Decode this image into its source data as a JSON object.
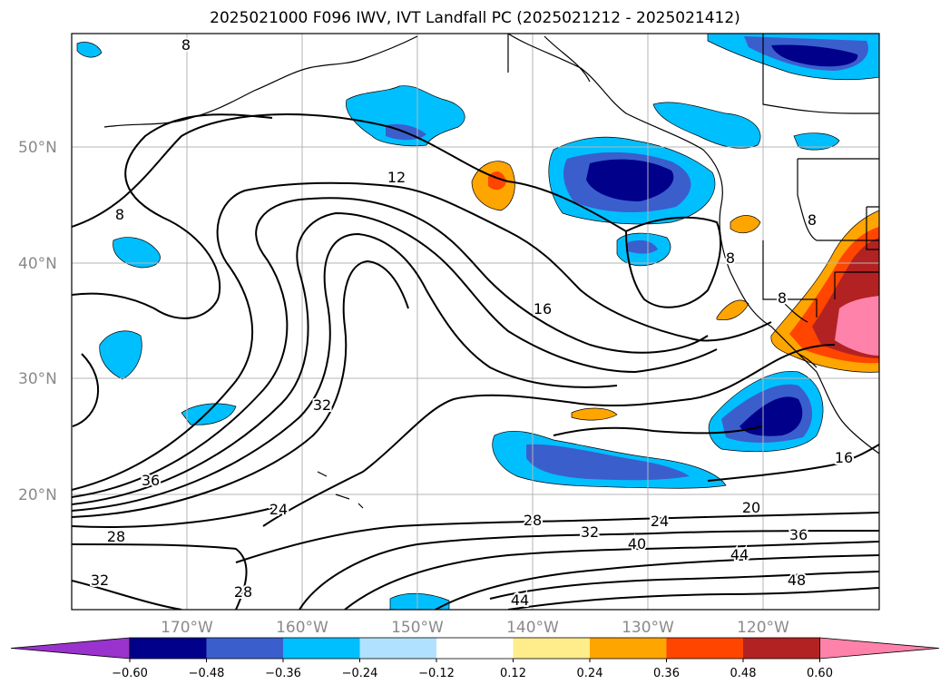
{
  "title": "2025021000 F096 IWV, IVT Landfall PC (2025021212 - 2025021412)",
  "map": {
    "lat_labels": [
      "50°N",
      "40°N",
      "30°N",
      "20°N"
    ],
    "lon_labels": [
      "170°W",
      "160°W",
      "150°W",
      "140°W",
      "130°W",
      "120°W"
    ],
    "extent": {
      "lon_min": -180,
      "lon_max": -110,
      "lat_min": 10,
      "lat_max": 60
    },
    "contour_labels": [
      "8",
      "8",
      "12",
      "16",
      "8",
      "32",
      "36",
      "24",
      "28",
      "32",
      "28",
      "28",
      "32",
      "24",
      "40",
      "20",
      "36",
      "44",
      "48",
      "44",
      "16",
      "8",
      "8"
    ],
    "contour_color": "#000000",
    "coastline_color": "#000000"
  },
  "colorbar": {
    "ticks": [
      "−0.60",
      "−0.48",
      "−0.36",
      "−0.24",
      "−0.12",
      "0.12",
      "0.24",
      "0.36",
      "0.48",
      "0.60"
    ],
    "colors": [
      "#9a32cd",
      "#00008b",
      "#3a5fcd",
      "#00bfff",
      "#b0e2ff",
      "#ffffff",
      "#ffec8b",
      "#ffa500",
      "#ff4500",
      "#b22222",
      "#ff82ab"
    ]
  },
  "fill_colors": {
    "neg_dark": "#00008b",
    "neg_mid": "#3a5fcd",
    "neg_light": "#00bfff",
    "neg_pale": "#b0e2ff",
    "pos_pale": "#ffec8b",
    "pos_orange": "#ffa500",
    "pos_red": "#ff4500",
    "pos_dark_red": "#b22222",
    "pos_pink": "#ff82ab"
  }
}
